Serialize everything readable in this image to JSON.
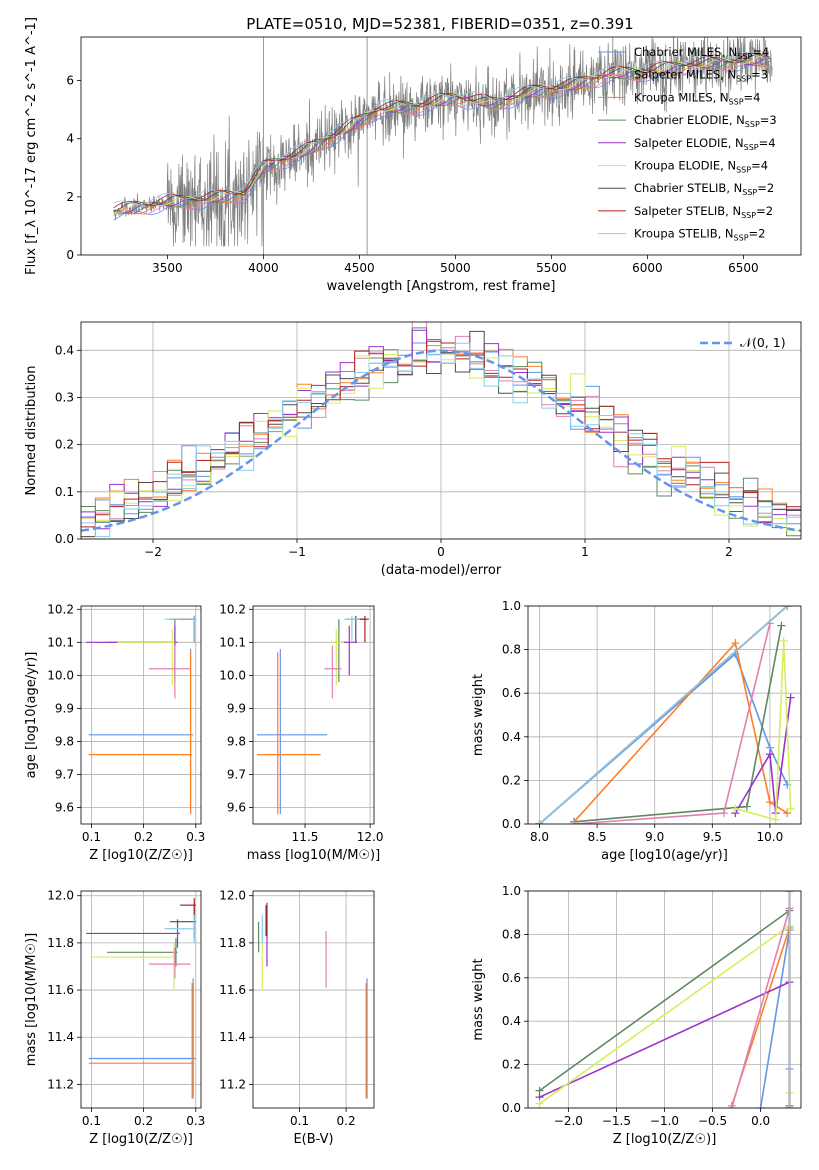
{
  "figure_title": "PLATE=0510, MJD=52381, FIBERID=0351, z=0.391",
  "colors": {
    "chabrier_miles": "#6495ed",
    "salpeter_miles": "#8b6508",
    "kroupa_miles": "#ff7f24",
    "chabrier_elodie": "#5f8a5f",
    "salpeter_elodie": "#9932cc",
    "kroupa_elodie": "#d4ee5e",
    "chabrier_stelib": "#4d4d4d",
    "salpeter_stelib": "#b22222",
    "kroupa_stelib": "#87ceeb",
    "pink": "#e37fb5",
    "data_grey": "#808080"
  },
  "chart_data": [
    {
      "type": "line",
      "title": "PLATE=0510, MJD=52381, FIBERID=0351, z=0.391",
      "xlabel": "wavelength [Angstrom, rest frame]",
      "ylabel": "Flux [f_λ 10^-17 erg cm^-2 s^-1 A^-1]",
      "xlim": [
        3050,
        6800
      ],
      "ylim": [
        0,
        7.5
      ],
      "xticks": [
        3500,
        4000,
        4500,
        5000,
        5500,
        6000,
        6500
      ],
      "yticks": [
        0,
        2,
        4,
        6
      ],
      "legend": "top-right",
      "legend_entries": [
        {
          "name": "Chabrier MILES, N_SSP=4",
          "color": "#6495ed"
        },
        {
          "name": "Salpeter MILES, N_SSP=3",
          "color": "#e37fb5"
        },
        {
          "name": "Kroupa MILES, N_SSP=4",
          "color": "#ff7f24"
        },
        {
          "name": "Chabrier ELODIE, N_SSP=3",
          "color": "#5f8a5f"
        },
        {
          "name": "Salpeter ELODIE, N_SSP=4",
          "color": "#9932cc"
        },
        {
          "name": "Kroupa ELODIE, N_SSP=4",
          "color": "#d4ee5e"
        },
        {
          "name": "Chabrier STELIB, N_SSP=2",
          "color": "#4d4d4d"
        },
        {
          "name": "Salpeter STELIB, N_SSP=2",
          "color": "#b22222"
        },
        {
          "name": "Kroupa STELIB, N_SSP=2",
          "color": "#87ceeb"
        }
      ],
      "model_continuum": {
        "x": [
          3220,
          3500,
          3700,
          3900,
          4000,
          4200,
          4400,
          4600,
          4800,
          5000,
          5200,
          5400,
          5600,
          5800,
          6000,
          6200,
          6400,
          6600
        ],
        "y": [
          1.5,
          1.8,
          1.9,
          2.1,
          3.0,
          3.5,
          4.2,
          5.0,
          5.1,
          5.4,
          5.2,
          5.6,
          5.8,
          6.2,
          6.3,
          6.5,
          6.6,
          6.7
        ]
      }
    },
    {
      "type": "histogram",
      "xlabel": "(data-model)/error",
      "ylabel": "Normed distribution",
      "xlim": [
        -2.5,
        2.5
      ],
      "ylim": [
        0,
        0.46
      ],
      "xticks": [
        -2,
        -1,
        0,
        1,
        2
      ],
      "yticks": [
        0.0,
        0.1,
        0.2,
        0.3,
        0.4
      ],
      "legend": "top-right",
      "legend_entries": [
        {
          "name": "𝒩(0, 1)",
          "color": "#6495ed",
          "style": "dashed"
        }
      ],
      "bin_width": 0.1
    },
    {
      "type": "scatter",
      "xlabel": "Z [log10(Z/Z☉)]",
      "ylabel": "age  [log10(age/yr)]",
      "xlim": [
        0.08,
        0.31
      ],
      "ylim": [
        9.55,
        10.21
      ],
      "xticks": [
        0.1,
        0.2,
        0.3
      ],
      "yticks": [
        9.6,
        9.7,
        9.8,
        9.9,
        10.0,
        10.1,
        10.2
      ],
      "points": [
        {
          "x": 0.29,
          "y": 9.82,
          "xl": 0.095,
          "xh": 0.295,
          "yl": 9.58,
          "yh": 10.08,
          "color": "#6495ed"
        },
        {
          "x": 0.29,
          "y": 9.76,
          "xl": 0.095,
          "xh": 0.293,
          "yl": 9.58,
          "yh": 10.07,
          "color": "#ff7f24"
        },
        {
          "x": 0.26,
          "y": 10.1,
          "xl": 0.13,
          "xh": 0.262,
          "yl": 9.98,
          "yh": 10.17,
          "color": "#5f8a5f"
        },
        {
          "x": 0.26,
          "y": 10.1,
          "xl": 0.09,
          "xh": 0.265,
          "yl": 10.0,
          "yh": 10.15,
          "color": "#9932cc"
        },
        {
          "x": 0.255,
          "y": 10.1,
          "xl": 0.15,
          "xh": 0.26,
          "yl": 9.97,
          "yh": 10.14,
          "color": "#d4ee5e"
        },
        {
          "x": 0.26,
          "y": 10.02,
          "xl": 0.21,
          "xh": 0.29,
          "yl": 9.93,
          "yh": 10.09,
          "color": "#e37fb5"
        },
        {
          "x": 0.297,
          "y": 10.17,
          "xl": 0.25,
          "xh": 0.3,
          "yl": 10.1,
          "yh": 10.18,
          "color": "#4d4d4d"
        },
        {
          "x": 0.297,
          "y": 10.17,
          "xl": 0.27,
          "xh": 0.3,
          "yl": 10.1,
          "yh": 10.18,
          "color": "#b22222"
        },
        {
          "x": 0.297,
          "y": 10.17,
          "xl": 0.24,
          "xh": 0.3,
          "yl": 10.1,
          "yh": 10.18,
          "color": "#87ceeb"
        }
      ]
    },
    {
      "type": "scatter",
      "xlabel": "mass [log10(M/M☉)]",
      "ylabel": "",
      "xlim": [
        11.1,
        12.03
      ],
      "ylim": [
        9.55,
        10.21
      ],
      "xticks": [
        11.5,
        12.0
      ],
      "yticks": [
        9.6,
        9.7,
        9.8,
        9.9,
        10.0,
        10.1,
        10.2
      ],
      "points": [
        {
          "x": 11.31,
          "y": 9.82,
          "xl": 11.13,
          "xh": 11.67,
          "yl": 9.58,
          "yh": 10.08,
          "color": "#6495ed"
        },
        {
          "x": 11.29,
          "y": 9.76,
          "xl": 11.13,
          "xh": 11.62,
          "yl": 9.58,
          "yh": 10.07,
          "color": "#ff7f24"
        },
        {
          "x": 11.76,
          "y": 10.1,
          "xl": 11.7,
          "xh": 11.82,
          "yl": 9.98,
          "yh": 10.17,
          "color": "#5f8a5f"
        },
        {
          "x": 11.84,
          "y": 10.1,
          "xl": 11.78,
          "xh": 11.9,
          "yl": 10.0,
          "yh": 10.15,
          "color": "#9932cc"
        },
        {
          "x": 11.74,
          "y": 10.1,
          "xl": 11.7,
          "xh": 11.8,
          "yl": 9.97,
          "yh": 10.14,
          "color": "#d4ee5e"
        },
        {
          "x": 11.71,
          "y": 10.02,
          "xl": 11.65,
          "xh": 11.78,
          "yl": 9.93,
          "yh": 10.09,
          "color": "#e37fb5"
        },
        {
          "x": 11.89,
          "y": 10.17,
          "xl": 11.82,
          "xh": 11.97,
          "yl": 10.1,
          "yh": 10.18,
          "color": "#4d4d4d"
        },
        {
          "x": 11.96,
          "y": 10.17,
          "xl": 11.9,
          "xh": 11.99,
          "yl": 10.1,
          "yh": 10.18,
          "color": "#b22222"
        },
        {
          "x": 11.86,
          "y": 10.17,
          "xl": 11.8,
          "xh": 11.92,
          "yl": 10.1,
          "yh": 10.18,
          "color": "#87ceeb"
        }
      ]
    },
    {
      "type": "line",
      "xlabel": "age  [log10(age/yr)]",
      "ylabel": "mass weight",
      "xlim": [
        7.9,
        10.27
      ],
      "ylim": [
        0,
        1
      ],
      "xticks": [
        8.0,
        8.5,
        9.0,
        9.5,
        10.0
      ],
      "yticks": [
        0.0,
        0.2,
        0.4,
        0.6,
        0.8,
        1.0
      ],
      "series": [
        {
          "color": "#6495ed",
          "x": [
            8.0,
            9.7,
            10.0,
            10.15
          ],
          "y": [
            0.0,
            0.78,
            0.35,
            0.18
          ]
        },
        {
          "color": "#ff7f24",
          "x": [
            8.3,
            9.7,
            10.0,
            10.15
          ],
          "y": [
            0.01,
            0.83,
            0.1,
            0.05
          ]
        },
        {
          "color": "#5f8a5f",
          "x": [
            8.3,
            9.8,
            10.1
          ],
          "y": [
            0.01,
            0.08,
            0.91
          ]
        },
        {
          "color": "#9932cc",
          "x": [
            9.7,
            10.0,
            10.05,
            10.18
          ],
          "y": [
            0.05,
            0.32,
            0.05,
            0.58
          ]
        },
        {
          "color": "#d4ee5e",
          "x": [
            9.7,
            10.05,
            10.12,
            10.18
          ],
          "y": [
            0.07,
            0.02,
            0.84,
            0.07
          ]
        },
        {
          "color": "#e37fb5",
          "x": [
            8.3,
            9.6,
            10.0
          ],
          "y": [
            0.0,
            0.05,
            0.92
          ]
        },
        {
          "color": "#4d4d4d",
          "x": [
            8.0,
            10.15
          ],
          "y": [
            0.0,
            1.0
          ]
        },
        {
          "color": "#b22222",
          "x": [
            8.0,
            10.15
          ],
          "y": [
            0.0,
            1.0
          ]
        },
        {
          "color": "#87ceeb",
          "x": [
            8.0,
            10.15
          ],
          "y": [
            0.0,
            1.0
          ]
        }
      ]
    },
    {
      "type": "scatter",
      "xlabel": "Z [log10(Z/Z☉)]",
      "ylabel": "mass [log10(M/M☉)]",
      "xlim": [
        0.08,
        0.31
      ],
      "ylim": [
        11.1,
        12.02
      ],
      "xticks": [
        0.1,
        0.2,
        0.3
      ],
      "yticks": [
        11.2,
        11.4,
        11.6,
        11.8,
        12.0
      ],
      "points": [
        {
          "x": 0.295,
          "y": 11.31,
          "xl": 0.095,
          "xh": 0.3,
          "yl": 11.14,
          "yh": 11.65,
          "color": "#6495ed"
        },
        {
          "x": 0.293,
          "y": 11.29,
          "xl": 0.095,
          "xh": 0.297,
          "yl": 11.14,
          "yh": 11.63,
          "color": "#ff7f24"
        },
        {
          "x": 0.262,
          "y": 11.76,
          "xl": 0.13,
          "xh": 0.265,
          "yl": 11.7,
          "yh": 11.82,
          "color": "#5f8a5f"
        },
        {
          "x": 0.265,
          "y": 11.84,
          "xl": 0.09,
          "xh": 0.27,
          "yl": 11.78,
          "yh": 11.9,
          "color": "#9932cc"
        },
        {
          "x": 0.258,
          "y": 11.74,
          "xl": 0.1,
          "xh": 0.26,
          "yl": 11.6,
          "yh": 11.8,
          "color": "#d4ee5e"
        },
        {
          "x": 0.26,
          "y": 11.71,
          "xl": 0.21,
          "xh": 0.29,
          "yl": 11.65,
          "yh": 11.78,
          "color": "#e37fb5"
        },
        {
          "x": 0.297,
          "y": 11.89,
          "xl": 0.25,
          "xh": 0.3,
          "yl": 11.82,
          "yh": 11.97,
          "color": "#4d4d4d"
        },
        {
          "x": 0.297,
          "y": 11.96,
          "xl": 0.27,
          "xh": 0.3,
          "yl": 11.9,
          "yh": 11.99,
          "color": "#b22222"
        },
        {
          "x": 0.297,
          "y": 11.86,
          "xl": 0.24,
          "xh": 0.3,
          "yl": 11.8,
          "yh": 11.92,
          "color": "#87ceeb"
        }
      ]
    },
    {
      "type": "scatter",
      "xlabel": "E(B-V)",
      "ylabel": "",
      "xlim": [
        0.0,
        0.26
      ],
      "ylim": [
        11.1,
        12.02
      ],
      "xticks": [
        0.1,
        0.2
      ],
      "yticks": [
        11.2,
        11.4,
        11.6,
        11.8,
        12.0
      ],
      "points": [
        {
          "x": 0.245,
          "y": 11.31,
          "yl": 11.14,
          "yh": 11.65,
          "color": "#6495ed"
        },
        {
          "x": 0.243,
          "y": 11.29,
          "yl": 11.14,
          "yh": 11.63,
          "color": "#ff7f24"
        },
        {
          "x": 0.012,
          "y": 11.8,
          "yl": 11.76,
          "yh": 11.89,
          "color": "#5f8a5f"
        },
        {
          "x": 0.03,
          "y": 11.84,
          "yl": 11.7,
          "yh": 11.9,
          "color": "#9932cc"
        },
        {
          "x": 0.02,
          "y": 11.7,
          "yl": 11.6,
          "yh": 11.85,
          "color": "#d4ee5e"
        },
        {
          "x": 0.157,
          "y": 11.72,
          "yl": 11.61,
          "yh": 11.85,
          "color": "#e37fb5"
        },
        {
          "x": 0.028,
          "y": 11.9,
          "yl": 11.83,
          "yh": 11.96,
          "color": "#4d4d4d"
        },
        {
          "x": 0.03,
          "y": 11.9,
          "yl": 11.83,
          "yh": 11.97,
          "color": "#b22222"
        },
        {
          "x": 0.02,
          "y": 11.86,
          "yl": 11.8,
          "yh": 11.92,
          "color": "#87ceeb"
        }
      ]
    },
    {
      "type": "line",
      "xlabel": "Z [log10(Z/Z☉)]",
      "ylabel": "mass weight",
      "xlim": [
        -2.42,
        0.42
      ],
      "ylim": [
        0,
        1
      ],
      "xticks": [
        -2.0,
        -1.5,
        -1.0,
        -0.5,
        0.0
      ],
      "yticks": [
        0.0,
        0.2,
        0.4,
        0.6,
        0.8,
        1.0
      ],
      "series": [
        {
          "color": "#6495ed",
          "x": [
            0.0,
            0.3,
            0.3
          ],
          "y": [
            0.0,
            0.82,
            0.18
          ]
        },
        {
          "color": "#ff7f24",
          "x": [
            -0.3,
            0.3
          ],
          "y": [
            0.01,
            0.83
          ]
        },
        {
          "color": "#5f8a5f",
          "x": [
            -2.3,
            0.3,
            0.3
          ],
          "y": [
            0.08,
            0.91,
            0.01
          ]
        },
        {
          "color": "#9932cc",
          "x": [
            -2.3,
            0.3
          ],
          "y": [
            0.05,
            0.58
          ]
        },
        {
          "color": "#d4ee5e",
          "x": [
            -2.3,
            0.3,
            0.3
          ],
          "y": [
            0.02,
            0.84,
            0.07
          ]
        },
        {
          "color": "#e37fb5",
          "x": [
            -0.3,
            0.3
          ],
          "y": [
            0.0,
            0.92
          ]
        },
        {
          "color": "#4d4d4d",
          "x": [
            0.3,
            0.3
          ],
          "y": [
            0.0,
            1.0
          ]
        },
        {
          "color": "#b22222",
          "x": [
            0.3,
            0.3
          ],
          "y": [
            0.0,
            1.0
          ]
        },
        {
          "color": "#87ceeb",
          "x": [
            0.3,
            0.3
          ],
          "y": [
            0.0,
            1.0
          ]
        }
      ]
    }
  ]
}
